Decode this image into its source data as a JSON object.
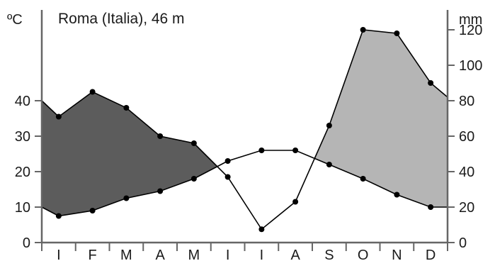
{
  "chart_data": {
    "type": "line",
    "title": "Roma (Italia), 46 m",
    "left_axis_unit": "ºC",
    "right_axis_unit": "mm",
    "left_ticks": [
      "0",
      "10",
      "20",
      "30",
      "40"
    ],
    "right_ticks": [
      "0",
      "20",
      "40",
      "60",
      "80",
      "100",
      "120"
    ],
    "left_ylim": [
      0,
      62
    ],
    "right_ylim": [
      0,
      124
    ],
    "categories": [
      "I",
      "F",
      "M",
      "A",
      "M",
      "I",
      "I",
      "A",
      "S",
      "O",
      "N",
      "D"
    ],
    "series": [
      {
        "axis": "left",
        "values": [
          7.5,
          9,
          12.5,
          14.5,
          18,
          23,
          26,
          26,
          22,
          18,
          13.5,
          10
        ],
        "edge_values": [
          10,
          10
        ]
      },
      {
        "axis": "right",
        "values": [
          71,
          85,
          76,
          60,
          56,
          37,
          7.5,
          23,
          66,
          120,
          118,
          90
        ],
        "edge_values": [
          80,
          82
        ]
      }
    ],
    "fill_colors": {
      "arid_excess": "#b5b5b5",
      "humid_excess": "#5c5c5c"
    },
    "line_color": "#000000"
  }
}
